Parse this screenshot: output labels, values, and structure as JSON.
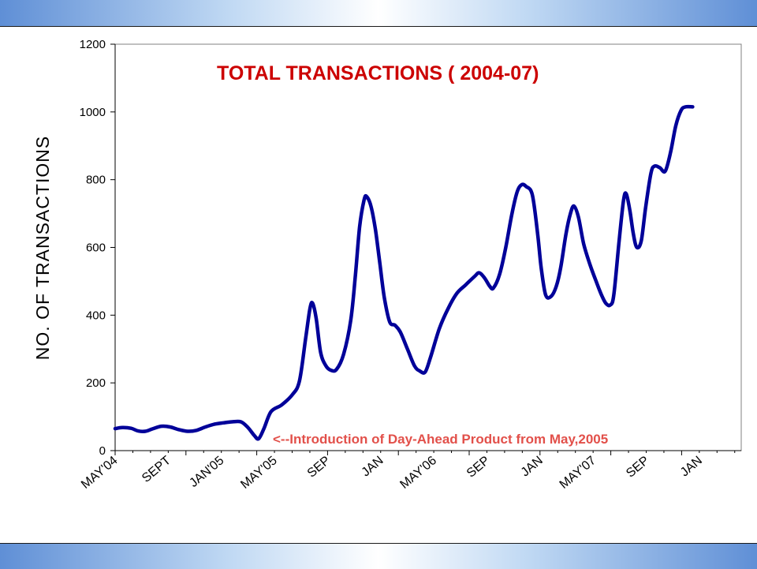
{
  "chart_data": {
    "type": "line",
    "title": "TOTAL TRANSACTIONS ( 2004-07)",
    "xlabel": "",
    "ylabel": "NO. OF TRANSACTIONS",
    "ylim": [
      0,
      1200
    ],
    "yticks": [
      "0",
      "200",
      "400",
      "600",
      "800",
      "1000",
      "1200"
    ],
    "xtick_labels": [
      "MAY'04",
      "SEPT",
      "JAN'05",
      "MAY'05",
      "SEP",
      "JAN",
      "MAY'06",
      "SEP",
      "JAN",
      "MAY'07",
      "SEP",
      "JAN"
    ],
    "grid": false,
    "line_color": "#000099",
    "title_color": "#cc0000",
    "annotation_color": "#e2504a",
    "annotation": "<--Introduction of Day-Ahead Product from May,2005",
    "series": [
      {
        "values": [
          [
            0,
            65
          ],
          [
            0.4,
            68
          ],
          [
            0.9,
            66
          ],
          [
            1.3,
            58
          ],
          [
            1.7,
            57
          ],
          [
            2.1,
            64
          ],
          [
            2.6,
            72
          ],
          [
            3.1,
            70
          ],
          [
            3.6,
            62
          ],
          [
            4.1,
            57
          ],
          [
            4.6,
            60
          ],
          [
            5.1,
            70
          ],
          [
            5.6,
            78
          ],
          [
            6.1,
            82
          ],
          [
            6.6,
            85
          ],
          [
            7.1,
            85
          ],
          [
            7.5,
            68
          ],
          [
            7.85,
            45
          ],
          [
            8.1,
            35
          ],
          [
            8.4,
            65
          ],
          [
            8.8,
            115
          ],
          [
            9.4,
            135
          ],
          [
            10,
            165
          ],
          [
            10.4,
            205
          ],
          [
            10.75,
            330
          ],
          [
            11,
            420
          ],
          [
            11.15,
            435
          ],
          [
            11.35,
            390
          ],
          [
            11.6,
            290
          ],
          [
            11.9,
            250
          ],
          [
            12.2,
            237
          ],
          [
            12.5,
            240
          ],
          [
            12.9,
            285
          ],
          [
            13.3,
            385
          ],
          [
            13.55,
            510
          ],
          [
            13.8,
            660
          ],
          [
            14.05,
            740
          ],
          [
            14.2,
            750
          ],
          [
            14.45,
            720
          ],
          [
            14.7,
            650
          ],
          [
            14.95,
            550
          ],
          [
            15.2,
            450
          ],
          [
            15.5,
            380
          ],
          [
            15.8,
            370
          ],
          [
            16.1,
            350
          ],
          [
            16.5,
            300
          ],
          [
            16.9,
            250
          ],
          [
            17.2,
            235
          ],
          [
            17.5,
            232
          ],
          [
            17.8,
            275
          ],
          [
            18.3,
            360
          ],
          [
            18.8,
            420
          ],
          [
            19.3,
            465
          ],
          [
            19.8,
            490
          ],
          [
            20.3,
            515
          ],
          [
            20.55,
            525
          ],
          [
            20.85,
            510
          ],
          [
            21.15,
            485
          ],
          [
            21.35,
            480
          ],
          [
            21.7,
            520
          ],
          [
            22.05,
            600
          ],
          [
            22.4,
            700
          ],
          [
            22.7,
            765
          ],
          [
            22.95,
            785
          ],
          [
            23.2,
            780
          ],
          [
            23.55,
            755
          ],
          [
            23.85,
            640
          ],
          [
            24.05,
            540
          ],
          [
            24.3,
            460
          ],
          [
            24.6,
            455
          ],
          [
            24.9,
            485
          ],
          [
            25.15,
            540
          ],
          [
            25.45,
            640
          ],
          [
            25.7,
            700
          ],
          [
            25.9,
            722
          ],
          [
            26.15,
            690
          ],
          [
            26.45,
            610
          ],
          [
            26.8,
            550
          ],
          [
            27.15,
            500
          ],
          [
            27.45,
            460
          ],
          [
            27.7,
            435
          ],
          [
            27.95,
            430
          ],
          [
            28.15,
            460
          ],
          [
            28.45,
            620
          ],
          [
            28.7,
            740
          ],
          [
            28.85,
            758
          ],
          [
            29.05,
            710
          ],
          [
            29.25,
            640
          ],
          [
            29.45,
            600
          ],
          [
            29.7,
            620
          ],
          [
            29.95,
            720
          ],
          [
            30.25,
            820
          ],
          [
            30.45,
            840
          ],
          [
            30.75,
            835
          ],
          [
            31.05,
            825
          ],
          [
            31.35,
            880
          ],
          [
            31.65,
            960
          ],
          [
            31.95,
            1005
          ],
          [
            32.2,
            1015
          ],
          [
            32.6,
            1015
          ]
        ]
      }
    ]
  }
}
